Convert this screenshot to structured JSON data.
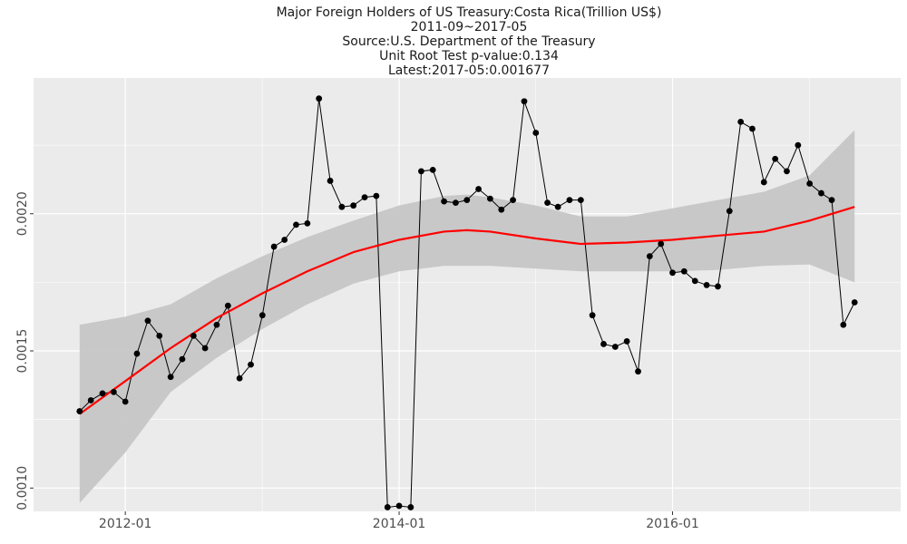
{
  "chart_data": {
    "type": "line",
    "title_lines": [
      "Major Foreign Holders of US Treasury:Costa Rica(Trillion US$)",
      "2011-09~2017-05",
      "Source:U.S. Department of the Treasury",
      "Unit Root Test p-value:0.134",
      "Latest:2017-05:0.001677"
    ],
    "xlabel": "",
    "ylabel": "",
    "x_ticks": [
      {
        "label": "2012-01",
        "date": "2012-01-01"
      },
      {
        "label": "2014-01",
        "date": "2014-01-01"
      },
      {
        "label": "2016-01",
        "date": "2016-01-01"
      }
    ],
    "y_ticks": [
      {
        "label": "0.0010",
        "value": 0.001
      },
      {
        "label": "0.0015",
        "value": 0.0015
      },
      {
        "label": "0.0020",
        "value": 0.002
      }
    ],
    "xlim": [
      "2011-05-01",
      "2017-09-01"
    ],
    "ylim": [
      0.000915,
      0.002495
    ],
    "grid": true,
    "colors": {
      "panel_bg": "#ebebeb",
      "grid": "#ffffff",
      "line": "#000000",
      "smooth": "#ff0000",
      "ribbon": "#c6c6c6"
    },
    "x": [
      "2011-09",
      "2011-10",
      "2011-11",
      "2011-12",
      "2012-01",
      "2012-02",
      "2012-03",
      "2012-04",
      "2012-05",
      "2012-06",
      "2012-07",
      "2012-08",
      "2012-09",
      "2012-10",
      "2012-11",
      "2012-12",
      "2013-01",
      "2013-02",
      "2013-03",
      "2013-04",
      "2013-05",
      "2013-06",
      "2013-07",
      "2013-08",
      "2013-09",
      "2013-10",
      "2013-11",
      "2013-12",
      "2014-01",
      "2014-02",
      "2014-03",
      "2014-04",
      "2014-05",
      "2014-06",
      "2014-07",
      "2014-08",
      "2014-09",
      "2014-10",
      "2014-11",
      "2014-12",
      "2015-01",
      "2015-02",
      "2015-03",
      "2015-04",
      "2015-05",
      "2015-06",
      "2015-07",
      "2015-08",
      "2015-09",
      "2015-10",
      "2015-11",
      "2015-12",
      "2016-01",
      "2016-02",
      "2016-03",
      "2016-04",
      "2016-05",
      "2016-06",
      "2016-07",
      "2016-08",
      "2016-09",
      "2016-10",
      "2016-11",
      "2016-12",
      "2017-01",
      "2017-02",
      "2017-03",
      "2017-04",
      "2017-05"
    ],
    "series": [
      {
        "values": [
          0.00128,
          0.00132,
          0.001345,
          0.00135,
          0.001315,
          0.00149,
          0.00161,
          0.001555,
          0.001405,
          0.00147,
          0.001555,
          0.00151,
          0.001595,
          0.001665,
          0.0014,
          0.00145,
          0.00163,
          0.00188,
          0.001905,
          0.00196,
          0.001965,
          0.00242,
          0.00212,
          0.002025,
          0.00203,
          0.00206,
          0.002065,
          0.00093,
          0.000935,
          0.00093,
          0.002155,
          0.00216,
          0.002045,
          0.00204,
          0.00205,
          0.00209,
          0.002055,
          0.002015,
          0.00205,
          0.00241,
          0.002295,
          0.00204,
          0.002025,
          0.00205,
          0.00205,
          0.00163,
          0.001525,
          0.001515,
          0.001535,
          0.001425,
          0.001845,
          0.00189,
          0.001785,
          0.00179,
          0.001755,
          0.00174,
          0.001735,
          0.00201,
          0.002335,
          0.00231,
          0.002115,
          0.0022,
          0.002155,
          0.00225,
          0.00211,
          0.002075,
          0.00205,
          0.001595,
          0.001677
        ]
      }
    ],
    "smooth": {
      "x": [
        "2011-09",
        "2012-01",
        "2012-05",
        "2012-09",
        "2013-01",
        "2013-05",
        "2013-09",
        "2014-01",
        "2014-05",
        "2014-07",
        "2014-09",
        "2015-01",
        "2015-05",
        "2015-09",
        "2016-01",
        "2016-05",
        "2016-09",
        "2017-01",
        "2017-05"
      ],
      "fit": [
        0.00127,
        0.00139,
        0.00151,
        0.00162,
        0.00171,
        0.00179,
        0.00186,
        0.001905,
        0.001935,
        0.00194,
        0.001935,
        0.00191,
        0.00189,
        0.001895,
        0.001905,
        0.00192,
        0.001935,
        0.001975,
        0.002025
      ],
      "lower": [
        0.000945,
        0.00113,
        0.00135,
        0.001475,
        0.00158,
        0.00167,
        0.001745,
        0.00179,
        0.00181,
        0.00181,
        0.00181,
        0.0018,
        0.00179,
        0.00179,
        0.00179,
        0.001795,
        0.00181,
        0.001815,
        0.00175
      ],
      "upper": [
        0.001595,
        0.001625,
        0.00167,
        0.001765,
        0.001845,
        0.001915,
        0.001975,
        0.00203,
        0.002065,
        0.00207,
        0.00206,
        0.00203,
        0.00199,
        0.00199,
        0.00202,
        0.00205,
        0.00208,
        0.00214,
        0.002305
      ]
    }
  }
}
